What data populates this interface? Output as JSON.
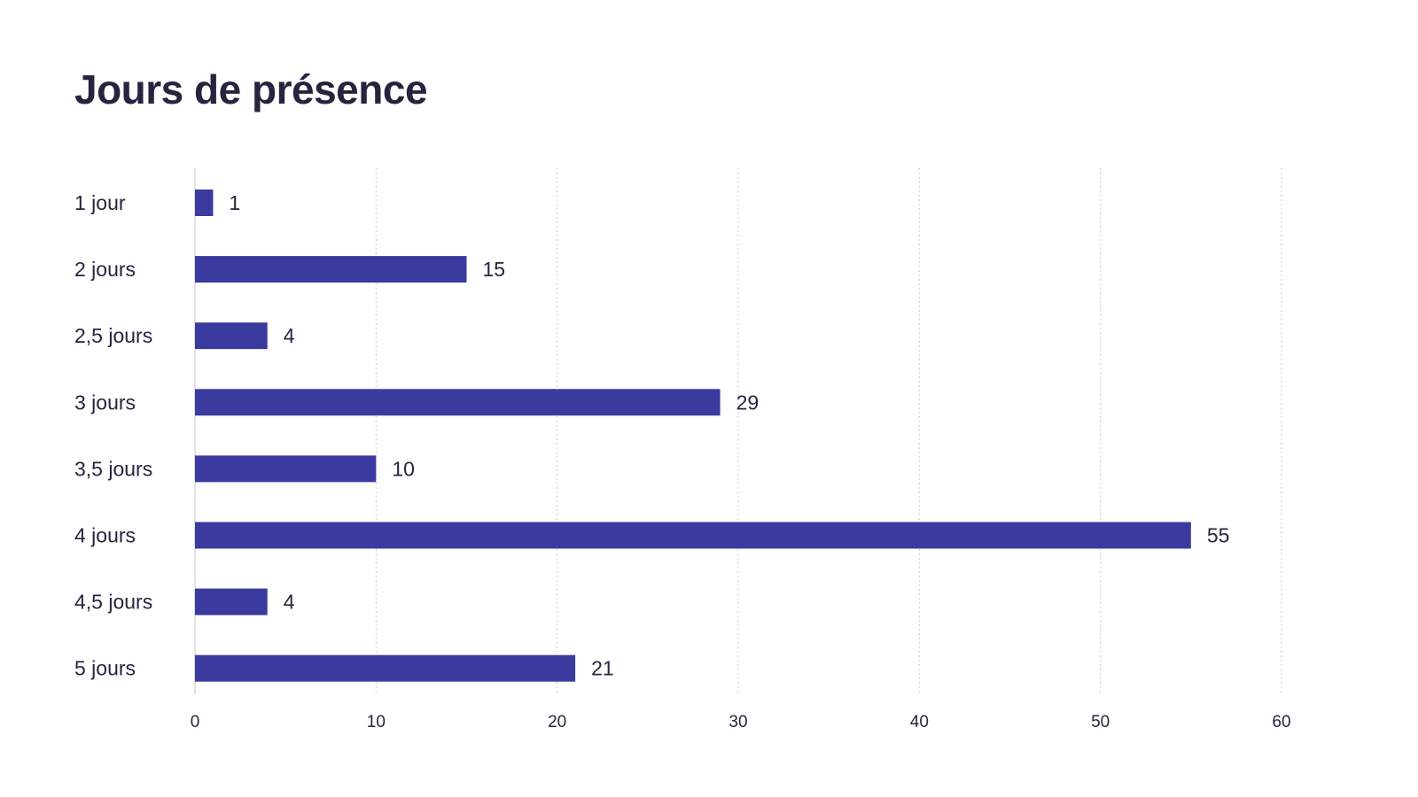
{
  "chart_data": {
    "type": "bar",
    "orientation": "horizontal",
    "title": "Jours de présence",
    "xlabel": "",
    "ylabel": "",
    "categories": [
      "1 jour",
      "2 jours",
      "2,5 jours",
      "3 jours",
      "3,5 jours",
      "4 jours",
      "4,5 jours",
      "5 jours"
    ],
    "values": [
      1,
      15,
      4,
      29,
      10,
      55,
      4,
      21
    ],
    "xlim": [
      0,
      60
    ],
    "xticks": [
      0,
      10,
      20,
      30,
      40,
      50,
      60
    ],
    "grid": "vertical dotted",
    "legend": "none",
    "bar_color": "#3a3a9f",
    "data_labels": true
  }
}
